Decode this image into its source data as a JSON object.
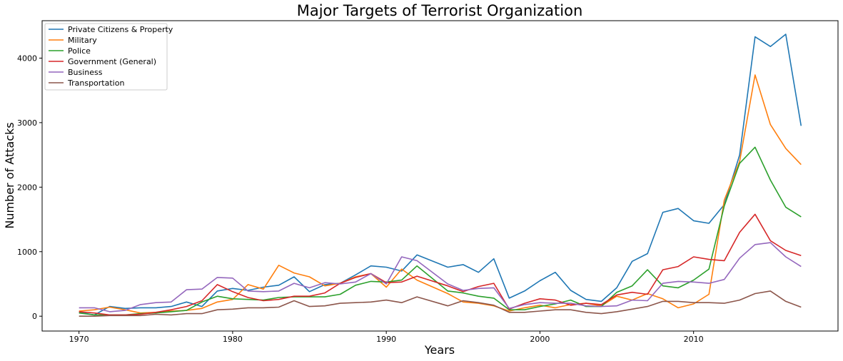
{
  "chart_data": {
    "type": "line",
    "title": "Major Targets of Terrorist Organization",
    "xlabel": "Years",
    "ylabel": "Number of Attacks",
    "xlim": [
      1967.6,
      2019.4
    ],
    "ylim": [
      -230,
      4580
    ],
    "xticks": [
      1970,
      1980,
      1990,
      2000,
      2010
    ],
    "yticks": [
      0,
      1000,
      2000,
      3000,
      4000
    ],
    "grid": false,
    "legend_position": "top-left",
    "x": [
      1970,
      1971,
      1972,
      1973,
      1974,
      1975,
      1976,
      1977,
      1978,
      1979,
      1980,
      1981,
      1982,
      1983,
      1984,
      1985,
      1986,
      1987,
      1988,
      1989,
      1990,
      1991,
      1992,
      1994,
      1995,
      1996,
      1997,
      1998,
      1999,
      2000,
      2001,
      2002,
      2003,
      2004,
      2005,
      2006,
      2007,
      2008,
      2009,
      2010,
      2011,
      2012,
      2013,
      2014,
      2015,
      2016,
      2017
    ],
    "series": [
      {
        "name": "Private Citizens & Property",
        "color": "#1f77b4",
        "values": [
          60,
          20,
          150,
          120,
          130,
          130,
          150,
          220,
          150,
          390,
          430,
          400,
          450,
          480,
          610,
          380,
          490,
          510,
          640,
          780,
          760,
          700,
          950,
          760,
          800,
          680,
          890,
          280,
          390,
          550,
          680,
          400,
          260,
          230,
          440,
          850,
          970,
          1610,
          1670,
          1480,
          1440,
          1730,
          2500,
          4330,
          4180,
          4370,
          2950
        ]
      },
      {
        "name": "Military",
        "color": "#ff7f0e",
        "values": [
          80,
          100,
          140,
          100,
          50,
          60,
          80,
          90,
          120,
          220,
          260,
          490,
          420,
          790,
          670,
          610,
          470,
          510,
          610,
          660,
          450,
          730,
          560,
          350,
          220,
          200,
          160,
          80,
          130,
          170,
          130,
          180,
          200,
          160,
          310,
          250,
          350,
          270,
          130,
          190,
          340,
          1800,
          2400,
          3740,
          2970,
          2600,
          2350
        ]
      },
      {
        "name": "Police",
        "color": "#2ca02c",
        "values": [
          50,
          20,
          20,
          20,
          40,
          50,
          70,
          90,
          220,
          310,
          270,
          260,
          250,
          290,
          300,
          300,
          300,
          340,
          480,
          540,
          530,
          560,
          780,
          390,
          360,
          310,
          280,
          100,
          100,
          150,
          190,
          250,
          150,
          150,
          370,
          470,
          720,
          470,
          440,
          560,
          730,
          1710,
          2370,
          2620,
          2110,
          1690,
          1540
        ]
      },
      {
        "name": "Government (General)",
        "color": "#d62728",
        "values": [
          70,
          50,
          20,
          20,
          30,
          60,
          100,
          150,
          240,
          490,
          380,
          290,
          240,
          260,
          310,
          310,
          360,
          510,
          600,
          660,
          520,
          530,
          620,
          470,
          380,
          460,
          510,
          110,
          200,
          270,
          250,
          170,
          200,
          180,
          330,
          370,
          340,
          720,
          770,
          920,
          880,
          860,
          1300,
          1580,
          1170,
          1020,
          940
        ]
      },
      {
        "name": "Business",
        "color": "#9467bd",
        "values": [
          130,
          130,
          70,
          90,
          180,
          210,
          220,
          410,
          420,
          600,
          590,
          390,
          380,
          390,
          510,
          440,
          520,
          500,
          530,
          660,
          500,
          920,
          860,
          500,
          400,
          430,
          440,
          120,
          180,
          210,
          200,
          200,
          160,
          150,
          160,
          250,
          240,
          510,
          540,
          530,
          510,
          570,
          900,
          1110,
          1140,
          920,
          770
        ]
      },
      {
        "name": "Transportation",
        "color": "#8c564b",
        "values": [
          0,
          0,
          10,
          10,
          10,
          30,
          20,
          40,
          40,
          100,
          110,
          130,
          130,
          140,
          240,
          150,
          160,
          200,
          210,
          220,
          250,
          210,
          300,
          160,
          240,
          210,
          170,
          60,
          60,
          80,
          100,
          100,
          60,
          40,
          70,
          110,
          150,
          230,
          230,
          210,
          210,
          200,
          250,
          350,
          390,
          230,
          140
        ]
      }
    ]
  }
}
